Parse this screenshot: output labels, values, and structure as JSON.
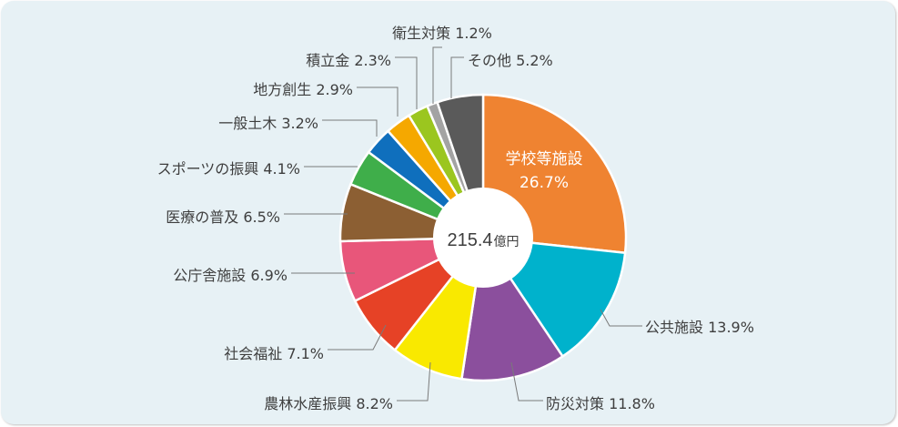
{
  "chart_data": {
    "type": "pie",
    "center_total": {
      "value": "215.4",
      "unit": "億円"
    },
    "slices": [
      {
        "label": "学校等施設",
        "value": 26.7,
        "percent_label": "26.7%",
        "color": "#ef8331"
      },
      {
        "label": "公共施設",
        "value": 13.9,
        "percent_label": "13.9%",
        "color": "#00b2cc"
      },
      {
        "label": "防災対策",
        "value": 11.8,
        "percent_label": "11.8%",
        "color": "#8b4f9d"
      },
      {
        "label": "農林水産振興",
        "value": 8.2,
        "percent_label": "8.2%",
        "color": "#f9e900"
      },
      {
        "label": "社会福祉",
        "value": 7.1,
        "percent_label": "7.1%",
        "color": "#e64226"
      },
      {
        "label": "公庁舎施設",
        "value": 6.9,
        "percent_label": "6.9%",
        "color": "#e8567a"
      },
      {
        "label": "医療の普及",
        "value": 6.5,
        "percent_label": "6.5%",
        "color": "#8c5f33"
      },
      {
        "label": "スポーツの振興",
        "value": 4.1,
        "percent_label": "4.1%",
        "color": "#3fae4a"
      },
      {
        "label": "一般土木",
        "value": 3.2,
        "percent_label": "3.2%",
        "color": "#0f6fbd"
      },
      {
        "label": "地方創生",
        "value": 2.9,
        "percent_label": "2.9%",
        "color": "#f5a800"
      },
      {
        "label": "積立金",
        "value": 2.3,
        "percent_label": "2.3%",
        "color": "#9bc61f"
      },
      {
        "label": "衛生対策",
        "value": 1.2,
        "percent_label": "1.2%",
        "color": "#a3a3a3"
      },
      {
        "label": "その他",
        "value": 5.2,
        "percent_label": "5.2%",
        "color": "#5a5a5a"
      }
    ]
  }
}
